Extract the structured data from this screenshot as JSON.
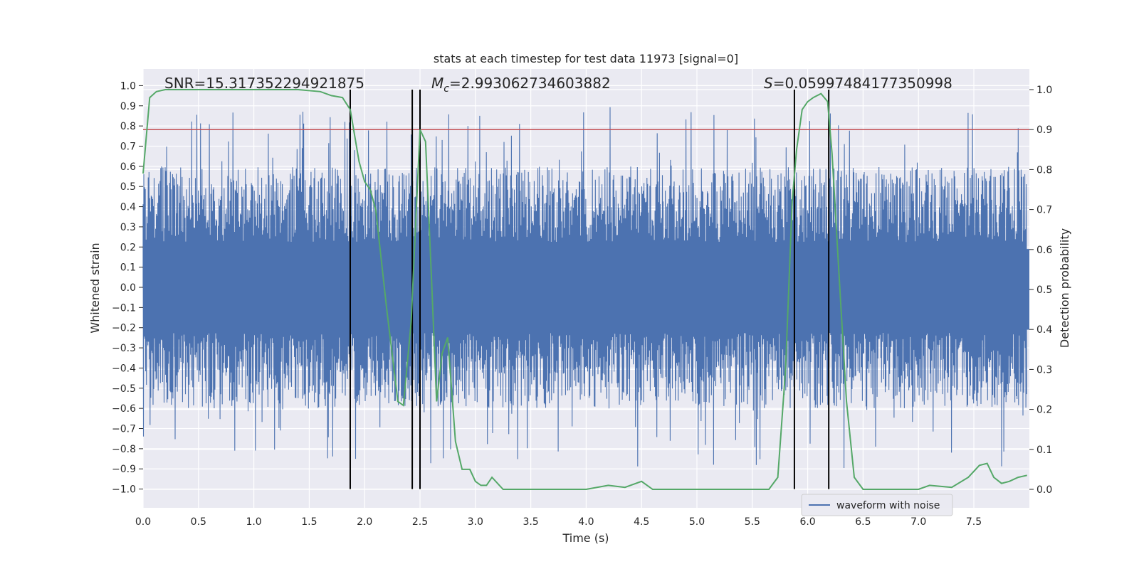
{
  "chart_data": {
    "type": "line",
    "title": "stats at each timestep for test data 11973 [signal=0]",
    "xlabel": "Time (s)",
    "ylabel": "Whitened strain",
    "y2label": "Detection probability",
    "xlim": [
      0.0,
      8.0
    ],
    "ylim": [
      -1.1,
      1.1
    ],
    "y2lim": [
      -0.05,
      1.05
    ],
    "x_ticks": [
      "0.0",
      "0.5",
      "1.0",
      "1.5",
      "2.0",
      "2.5",
      "3.0",
      "3.5",
      "4.0",
      "4.5",
      "5.0",
      "5.5",
      "6.0",
      "6.5",
      "7.0",
      "7.5"
    ],
    "y_ticks": [
      "1.0",
      "0.9",
      "0.8",
      "0.7",
      "0.6",
      "0.5",
      "0.4",
      "0.3",
      "0.2",
      "0.1",
      "0.0",
      "−0.1",
      "−0.2",
      "−0.3",
      "−0.4",
      "−0.5",
      "−0.6",
      "−0.7",
      "−0.8",
      "−0.9",
      "−1.0"
    ],
    "y2_ticks": [
      "1.0",
      "0.9",
      "0.8",
      "0.7",
      "0.6",
      "0.5",
      "0.4",
      "0.3",
      "0.2",
      "0.1",
      "0.0"
    ],
    "annotations": {
      "snr": "SNR=15.317352294921875",
      "mc_symbol": "M",
      "mc_subscript": "c",
      "mc_value": "=2.993062734603882",
      "s_symbol": "S",
      "s_value": "=0.059974841773509​98"
    },
    "threshold": {
      "axis": "y2",
      "value": 0.9,
      "color": "#c44e52"
    },
    "vertical_lines_x": [
      1.87,
      2.43,
      2.5,
      5.88,
      6.19
    ],
    "series": [
      {
        "name": "waveform with noise",
        "axis": "y",
        "color": "#4c72b0",
        "kind": "noise",
        "typical_abs": 0.5,
        "max_value": 0.98,
        "min_value": -1.0
      },
      {
        "name": "detection probability",
        "axis": "y2",
        "color": "#55a868",
        "x": [
          0.0,
          0.06,
          0.12,
          0.2,
          0.4,
          0.6,
          0.8,
          1.0,
          1.2,
          1.4,
          1.6,
          1.7,
          1.8,
          1.87,
          1.95,
          2.0,
          2.05,
          2.1,
          2.2,
          2.3,
          2.35,
          2.42,
          2.5,
          2.55,
          2.6,
          2.65,
          2.7,
          2.75,
          2.82,
          2.88,
          2.95,
          3.0,
          3.05,
          3.1,
          3.15,
          3.25,
          3.3,
          3.35,
          3.5,
          3.7,
          4.0,
          4.2,
          4.35,
          4.5,
          4.6,
          4.8,
          5.0,
          5.3,
          5.5,
          5.65,
          5.73,
          5.8,
          5.86,
          5.9,
          5.95,
          6.0,
          6.05,
          6.12,
          6.18,
          6.22,
          6.28,
          6.35,
          6.42,
          6.5,
          6.7,
          7.0,
          7.1,
          7.3,
          7.45,
          7.55,
          7.62,
          7.68,
          7.75,
          7.82,
          7.9,
          7.98
        ],
        "y": [
          0.79,
          0.98,
          0.995,
          1.0,
          1.0,
          1.0,
          1.0,
          1.0,
          1.0,
          1.0,
          0.995,
          0.985,
          0.98,
          0.95,
          0.82,
          0.77,
          0.75,
          0.7,
          0.45,
          0.22,
          0.21,
          0.42,
          0.9,
          0.87,
          0.55,
          0.22,
          0.34,
          0.38,
          0.12,
          0.05,
          0.05,
          0.02,
          0.01,
          0.01,
          0.03,
          0.0,
          -0.0,
          0.0,
          0.0,
          0.0,
          0.0,
          0.01,
          0.005,
          0.02,
          0.0,
          0.0,
          0.0,
          0.0,
          0.0,
          0.0,
          0.03,
          0.3,
          0.72,
          0.85,
          0.95,
          0.97,
          0.98,
          0.99,
          0.97,
          0.84,
          0.55,
          0.22,
          0.03,
          0.0,
          0.0,
          0.0,
          0.01,
          0.005,
          0.03,
          0.06,
          0.065,
          0.03,
          0.015,
          0.02,
          0.03,
          0.035
        ]
      }
    ],
    "legend": {
      "label": "waveform with noise",
      "position": "lower-right"
    }
  }
}
